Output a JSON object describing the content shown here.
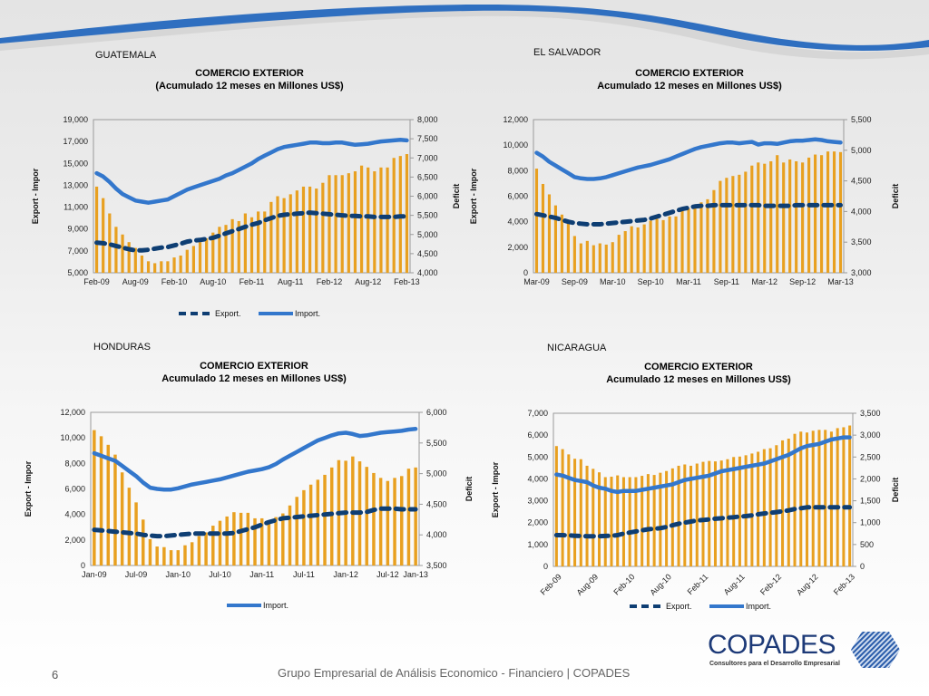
{
  "slide": {
    "page_number": "6",
    "footer": "Grupo Empresarial de Análisis Economico - Financiero | COPADES",
    "logo": {
      "name": "COPADES",
      "tagline": "Consultores para el Desarrollo Empresarial"
    },
    "colors": {
      "bars": "#E8A020",
      "import": "#3377CC",
      "export": "#0E3E73",
      "swoosh": "#2F6FC0"
    }
  },
  "chart_data": [
    {
      "country": "GUATEMALA",
      "type": "bar+line",
      "title": "COMERCIO EXTERIOR",
      "subtitle": "(Acumulado 12 meses en Millones US$)",
      "ylabel": "Export - Impor",
      "y2label": "Deficit",
      "ylim": [
        5000,
        19000
      ],
      "yticks": [
        "5,000",
        "7,000",
        "9,000",
        "11,000",
        "13,000",
        "15,000",
        "17,000",
        "19,000"
      ],
      "y2lim": [
        4000,
        8000
      ],
      "y2ticks": [
        "4,000",
        "4,500",
        "5,000",
        "5,500",
        "6,000",
        "6,500",
        "7,000",
        "7,500",
        "8,000"
      ],
      "xticks": [
        "Feb-09",
        "Aug-09",
        "Feb-10",
        "Aug-10",
        "Feb-11",
        "Aug-11",
        "Feb-12",
        "Aug-12",
        "Feb-13"
      ],
      "tick_every": 6,
      "rotate_xticks": false,
      "legend": [
        "Export.",
        "Import."
      ],
      "series": [
        {
          "name": "Deficit",
          "axis": "right",
          "kind": "bar",
          "values": [
            6250,
            5950,
            5550,
            5200,
            5000,
            4800,
            4650,
            4450,
            4300,
            4250,
            4300,
            4300,
            4400,
            4450,
            4600,
            4700,
            4800,
            4900,
            5050,
            5200,
            5250,
            5400,
            5350,
            5550,
            5450,
            5600,
            5600,
            5850,
            6000,
            5950,
            6050,
            6150,
            6250,
            6250,
            6200,
            6350,
            6550,
            6550,
            6550,
            6600,
            6650,
            6800,
            6750,
            6650,
            6750,
            6750,
            7000,
            7050,
            7100
          ]
        },
        {
          "name": "Import.",
          "axis": "left",
          "kind": "line",
          "values": [
            14100,
            13800,
            13300,
            12700,
            12200,
            11900,
            11600,
            11500,
            11400,
            11500,
            11600,
            11700,
            12000,
            12300,
            12600,
            12800,
            13000,
            13200,
            13400,
            13600,
            13900,
            14100,
            14400,
            14700,
            15000,
            15400,
            15700,
            16000,
            16300,
            16500,
            16600,
            16700,
            16800,
            16900,
            16900,
            16850,
            16850,
            16900,
            16900,
            16800,
            16700,
            16750,
            16800,
            16900,
            17000,
            17050,
            17100,
            17150,
            17100
          ]
        },
        {
          "name": "Export.",
          "axis": "left",
          "kind": "dashed",
          "values": [
            7750,
            7700,
            7600,
            7450,
            7300,
            7150,
            7050,
            7050,
            7100,
            7200,
            7300,
            7350,
            7500,
            7650,
            7850,
            7950,
            8000,
            8100,
            8200,
            8400,
            8600,
            8800,
            9000,
            9200,
            9400,
            9550,
            9800,
            10000,
            10200,
            10300,
            10350,
            10400,
            10450,
            10500,
            10450,
            10400,
            10350,
            10300,
            10250,
            10200,
            10200,
            10150,
            10150,
            10100,
            10100,
            10100,
            10100,
            10150,
            10150
          ]
        }
      ]
    },
    {
      "country": "EL SALVADOR",
      "type": "bar+line",
      "title": "COMERCIO EXTERIOR",
      "subtitle": "Acumulado 12 meses en Millones US$)",
      "ylabel": "Export - Impor",
      "y2label": "Deficit",
      "ylim": [
        0,
        12000
      ],
      "yticks": [
        "0",
        "2,000",
        "4,000",
        "6,000",
        "8,000",
        "10,000",
        "12,000"
      ],
      "y2lim": [
        3000,
        5500
      ],
      "y2ticks": [
        "3,000",
        "3,500",
        "4,000",
        "4,500",
        "5,000",
        "5,500"
      ],
      "xticks": [
        "Mar-09",
        "Sep-09",
        "Mar-10",
        "Sep-10",
        "Mar-11",
        "Sep-11",
        "Mar-12",
        "Sep-12",
        "Mar-13"
      ],
      "tick_every": 6,
      "rotate_xticks": false,
      "legend": [],
      "series": [
        {
          "name": "Deficit",
          "axis": "right",
          "kind": "bar",
          "values": [
            4700,
            4450,
            4280,
            4100,
            3950,
            3800,
            3600,
            3480,
            3520,
            3450,
            3480,
            3460,
            3500,
            3620,
            3680,
            3760,
            3740,
            3790,
            3850,
            3880,
            3860,
            3920,
            3920,
            4020,
            4050,
            4100,
            4150,
            4200,
            4350,
            4500,
            4550,
            4580,
            4600,
            4650,
            4750,
            4800,
            4780,
            4820,
            4920,
            4800,
            4850,
            4820,
            4800,
            4880,
            4930,
            4920,
            4980,
            4980,
            4970
          ]
        },
        {
          "name": "Import.",
          "axis": "left",
          "kind": "line",
          "values": [
            9400,
            9100,
            8700,
            8400,
            8100,
            7800,
            7500,
            7400,
            7350,
            7350,
            7400,
            7500,
            7650,
            7800,
            7950,
            8100,
            8250,
            8350,
            8450,
            8600,
            8750,
            8900,
            9100,
            9300,
            9500,
            9700,
            9850,
            9950,
            10050,
            10150,
            10200,
            10200,
            10150,
            10200,
            10250,
            10050,
            10150,
            10150,
            10100,
            10200,
            10300,
            10350,
            10350,
            10400,
            10450,
            10400,
            10300,
            10250,
            10200
          ]
        },
        {
          "name": "Export.",
          "axis": "left",
          "kind": "dashed",
          "values": [
            4600,
            4500,
            4400,
            4300,
            4150,
            4000,
            3900,
            3850,
            3800,
            3800,
            3800,
            3850,
            3900,
            3950,
            4000,
            4050,
            4100,
            4150,
            4250,
            4400,
            4550,
            4700,
            4850,
            5000,
            5100,
            5200,
            5250,
            5250,
            5300,
            5300,
            5300,
            5300,
            5300,
            5300,
            5300,
            5300,
            5250,
            5250,
            5250,
            5250,
            5250,
            5300,
            5300,
            5300,
            5300,
            5300,
            5300,
            5300,
            5300
          ]
        }
      ]
    },
    {
      "country": "HONDURAS",
      "type": "bar+line",
      "title": "COMERCIO EXTERIOR",
      "subtitle": "Acumulado 12 meses en Millones US$)",
      "ylabel": "Export - Impor",
      "y2label": "Deficit",
      "ylim": [
        0,
        12000
      ],
      "yticks": [
        "0",
        "2,000",
        "4,000",
        "6,000",
        "8,000",
        "10,000",
        "12,000"
      ],
      "y2lim": [
        3500,
        6000
      ],
      "y2ticks": [
        "3,500",
        "4,000",
        "4,500",
        "5,000",
        "5,500",
        "6,000"
      ],
      "xticks": [
        "Jan-09",
        "Jul-09",
        "Jan-10",
        "Jul-10",
        "Jan-11",
        "Jul-11",
        "Jan-12",
        "Jul-12",
        "Jan-13"
      ],
      "tick_every": 6,
      "rotate_xticks": false,
      "legend": [
        "Import."
      ],
      "series": [
        {
          "name": "Deficit",
          "axis": "right",
          "kind": "bar",
          "values": [
            5710,
            5610,
            5470,
            5310,
            5020,
            4770,
            4530,
            4250,
            3930,
            3810,
            3800,
            3750,
            3750,
            3830,
            3880,
            3980,
            4040,
            4150,
            4230,
            4300,
            4370,
            4360,
            4360,
            4270,
            4270,
            4190,
            4290,
            4350,
            4480,
            4620,
            4730,
            4820,
            4900,
            4980,
            5100,
            5220,
            5210,
            5280,
            5200,
            5110,
            5010,
            4930,
            4880,
            4930,
            4960,
            5080,
            5100
          ]
        },
        {
          "name": "Import.",
          "axis": "left",
          "kind": "line",
          "values": [
            8800,
            8600,
            8400,
            8200,
            7800,
            7400,
            7000,
            6500,
            6100,
            6000,
            5950,
            5950,
            6050,
            6200,
            6350,
            6450,
            6550,
            6650,
            6750,
            6900,
            7050,
            7200,
            7350,
            7450,
            7550,
            7700,
            7950,
            8300,
            8600,
            8900,
            9200,
            9500,
            9800,
            10000,
            10200,
            10350,
            10400,
            10300,
            10150,
            10200,
            10300,
            10400,
            10450,
            10500,
            10550,
            10650,
            10700
          ]
        },
        {
          "name": "Export.",
          "axis": "left",
          "kind": "dashed",
          "values": [
            2800,
            2750,
            2700,
            2650,
            2600,
            2550,
            2500,
            2400,
            2350,
            2300,
            2300,
            2350,
            2400,
            2450,
            2500,
            2500,
            2500,
            2500,
            2500,
            2500,
            2550,
            2700,
            2850,
            3000,
            3200,
            3400,
            3550,
            3700,
            3750,
            3800,
            3850,
            3900,
            3950,
            4000,
            4050,
            4100,
            4150,
            4150,
            4150,
            4200,
            4350,
            4450,
            4450,
            4450,
            4400,
            4400,
            4400
          ]
        }
      ]
    },
    {
      "country": "NICARAGUA",
      "type": "bar+line",
      "title": "COMERCIO EXTERIOR",
      "subtitle": "Acumulado 12 meses en Millones US$)",
      "ylabel": "Export - Impor",
      "y2label": "Deficit",
      "ylim": [
        0,
        7000
      ],
      "yticks": [
        "0",
        "1,000",
        "2,000",
        "3,000",
        "4,000",
        "5,000",
        "6,000",
        "7,000"
      ],
      "y2lim": [
        0,
        3500
      ],
      "y2ticks": [
        "0",
        "500",
        "1,000",
        "1,500",
        "2,000",
        "2,500",
        "3,000",
        "3,500"
      ],
      "xticks": [
        "Feb-09",
        "Aug-09",
        "Feb-10",
        "Aug-10",
        "Feb-11",
        "Aug-11",
        "Feb-12",
        "Aug-12",
        "Feb-13"
      ],
      "tick_every": 6,
      "rotate_xticks": true,
      "legend": [
        "Export.",
        "Import."
      ],
      "series": [
        {
          "name": "Deficit",
          "axis": "right",
          "kind": "bar",
          "values": [
            2750,
            2680,
            2560,
            2460,
            2450,
            2300,
            2230,
            2150,
            2040,
            2050,
            2080,
            2040,
            2040,
            2040,
            2070,
            2110,
            2090,
            2140,
            2180,
            2240,
            2300,
            2330,
            2300,
            2350,
            2390,
            2410,
            2400,
            2420,
            2450,
            2500,
            2510,
            2540,
            2580,
            2620,
            2680,
            2700,
            2770,
            2880,
            2920,
            3030,
            3080,
            3060,
            3100,
            3120,
            3120,
            3080,
            3160,
            3180,
            3220
          ]
        },
        {
          "name": "Import.",
          "axis": "left",
          "kind": "line",
          "values": [
            4200,
            4150,
            4050,
            3950,
            3900,
            3850,
            3700,
            3600,
            3550,
            3450,
            3400,
            3450,
            3450,
            3450,
            3500,
            3550,
            3600,
            3650,
            3700,
            3750,
            3850,
            3950,
            4000,
            4050,
            4100,
            4150,
            4250,
            4350,
            4400,
            4450,
            4500,
            4550,
            4600,
            4650,
            4700,
            4800,
            4900,
            5000,
            5100,
            5250,
            5400,
            5500,
            5550,
            5600,
            5700,
            5800,
            5850,
            5900,
            5900
          ]
        },
        {
          "name": "Export.",
          "axis": "left",
          "kind": "dashed",
          "values": [
            1430,
            1430,
            1420,
            1400,
            1390,
            1380,
            1380,
            1380,
            1390,
            1400,
            1430,
            1500,
            1550,
            1600,
            1650,
            1700,
            1720,
            1750,
            1800,
            1880,
            1950,
            2000,
            2050,
            2100,
            2120,
            2150,
            2180,
            2200,
            2230,
            2250,
            2280,
            2300,
            2330,
            2380,
            2420,
            2450,
            2480,
            2520,
            2560,
            2620,
            2660,
            2700,
            2700,
            2700,
            2700,
            2700,
            2700,
            2700,
            2700
          ]
        }
      ]
    }
  ]
}
